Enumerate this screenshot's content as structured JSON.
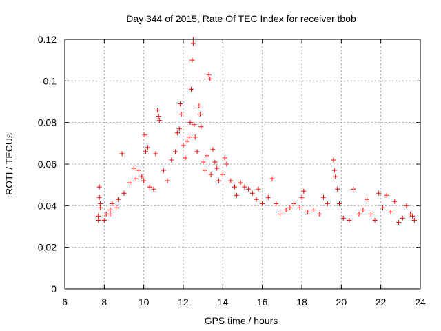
{
  "chart_data": {
    "type": "scatter",
    "title": "Day 344 of 2015, Rate Of TEC Index for receiver tbob",
    "xlabel": "GPS time / hours",
    "ylabel": "ROTI / TECUs",
    "xlim": [
      6,
      24
    ],
    "ylim": [
      0,
      0.12
    ],
    "xticks": [
      6,
      8,
      10,
      12,
      14,
      16,
      18,
      20,
      22,
      24
    ],
    "xtick_labels": [
      "6",
      "8",
      "10",
      "12",
      "14",
      "16",
      "18",
      "20",
      "22",
      "24"
    ],
    "yticks": [
      0,
      0.02,
      0.04,
      0.06,
      0.08,
      0.1,
      0.12
    ],
    "ytick_labels": [
      "0",
      "0.02",
      "0.04",
      "0.06",
      "0.08",
      "0.1",
      "0.12"
    ],
    "grid": true,
    "marker": "+",
    "color": "#ff0000",
    "series": [
      {
        "name": "ROTI",
        "points": [
          [
            7.7,
            0.035
          ],
          [
            7.7,
            0.033
          ],
          [
            7.75,
            0.049
          ],
          [
            7.75,
            0.044
          ],
          [
            7.8,
            0.041
          ],
          [
            7.8,
            0.039
          ],
          [
            8.0,
            0.033
          ],
          [
            8.1,
            0.036
          ],
          [
            8.3,
            0.038
          ],
          [
            8.3,
            0.036
          ],
          [
            8.4,
            0.041
          ],
          [
            8.6,
            0.039
          ],
          [
            8.7,
            0.043
          ],
          [
            8.9,
            0.065
          ],
          [
            9.0,
            0.046
          ],
          [
            9.3,
            0.051
          ],
          [
            9.5,
            0.058
          ],
          [
            9.6,
            0.053
          ],
          [
            9.75,
            0.057
          ],
          [
            9.9,
            0.054
          ],
          [
            10.0,
            0.052
          ],
          [
            10.05,
            0.074
          ],
          [
            10.1,
            0.066
          ],
          [
            10.2,
            0.068
          ],
          [
            10.3,
            0.049
          ],
          [
            10.5,
            0.048
          ],
          [
            10.6,
            0.065
          ],
          [
            10.7,
            0.086
          ],
          [
            10.75,
            0.083
          ],
          [
            10.8,
            0.081
          ],
          [
            11.0,
            0.057
          ],
          [
            11.2,
            0.052
          ],
          [
            11.4,
            0.062
          ],
          [
            11.6,
            0.066
          ],
          [
            11.7,
            0.075
          ],
          [
            11.8,
            0.077
          ],
          [
            11.85,
            0.089
          ],
          [
            11.9,
            0.084
          ],
          [
            12.0,
            0.069
          ],
          [
            12.1,
            0.063
          ],
          [
            12.2,
            0.071
          ],
          [
            12.3,
            0.073
          ],
          [
            12.35,
            0.08
          ],
          [
            12.4,
            0.096
          ],
          [
            12.45,
            0.11
          ],
          [
            12.5,
            0.118
          ],
          [
            12.5,
            0.12
          ],
          [
            12.55,
            0.079
          ],
          [
            12.6,
            0.073
          ],
          [
            12.7,
            0.066
          ],
          [
            12.8,
            0.088
          ],
          [
            12.85,
            0.084
          ],
          [
            12.9,
            0.078
          ],
          [
            13.0,
            0.061
          ],
          [
            13.1,
            0.057
          ],
          [
            13.2,
            0.064
          ],
          [
            13.3,
            0.103
          ],
          [
            13.35,
            0.101
          ],
          [
            13.4,
            0.055
          ],
          [
            13.5,
            0.067
          ],
          [
            13.6,
            0.061
          ],
          [
            13.7,
            0.058
          ],
          [
            13.8,
            0.052
          ],
          [
            14.0,
            0.055
          ],
          [
            14.1,
            0.063
          ],
          [
            14.2,
            0.06
          ],
          [
            14.4,
            0.052
          ],
          [
            14.6,
            0.049
          ],
          [
            14.7,
            0.045
          ],
          [
            14.9,
            0.051
          ],
          [
            15.1,
            0.049
          ],
          [
            15.3,
            0.048
          ],
          [
            15.5,
            0.046
          ],
          [
            15.7,
            0.043
          ],
          [
            15.8,
            0.048
          ],
          [
            16.0,
            0.041
          ],
          [
            16.3,
            0.044
          ],
          [
            16.5,
            0.053
          ],
          [
            16.7,
            0.041
          ],
          [
            16.9,
            0.036
          ],
          [
            17.2,
            0.038
          ],
          [
            17.4,
            0.039
          ],
          [
            17.6,
            0.041
          ],
          [
            17.9,
            0.039
          ],
          [
            18.0,
            0.044
          ],
          [
            18.1,
            0.047
          ],
          [
            18.3,
            0.037
          ],
          [
            18.6,
            0.038
          ],
          [
            18.9,
            0.036
          ],
          [
            19.1,
            0.044
          ],
          [
            19.3,
            0.041
          ],
          [
            19.6,
            0.062
          ],
          [
            19.65,
            0.057
          ],
          [
            19.7,
            0.054
          ],
          [
            19.8,
            0.048
          ],
          [
            19.9,
            0.041
          ],
          [
            20.1,
            0.034
          ],
          [
            20.4,
            0.033
          ],
          [
            20.6,
            0.048
          ],
          [
            20.9,
            0.036
          ],
          [
            21.1,
            0.038
          ],
          [
            21.3,
            0.043
          ],
          [
            21.5,
            0.036
          ],
          [
            21.7,
            0.033
          ],
          [
            21.9,
            0.046
          ],
          [
            22.1,
            0.039
          ],
          [
            22.3,
            0.045
          ],
          [
            22.5,
            0.037
          ],
          [
            22.7,
            0.042
          ],
          [
            22.9,
            0.032
          ],
          [
            23.1,
            0.034
          ],
          [
            23.3,
            0.04
          ],
          [
            23.5,
            0.036
          ],
          [
            23.6,
            0.035
          ],
          [
            23.7,
            0.033
          ]
        ]
      }
    ]
  }
}
